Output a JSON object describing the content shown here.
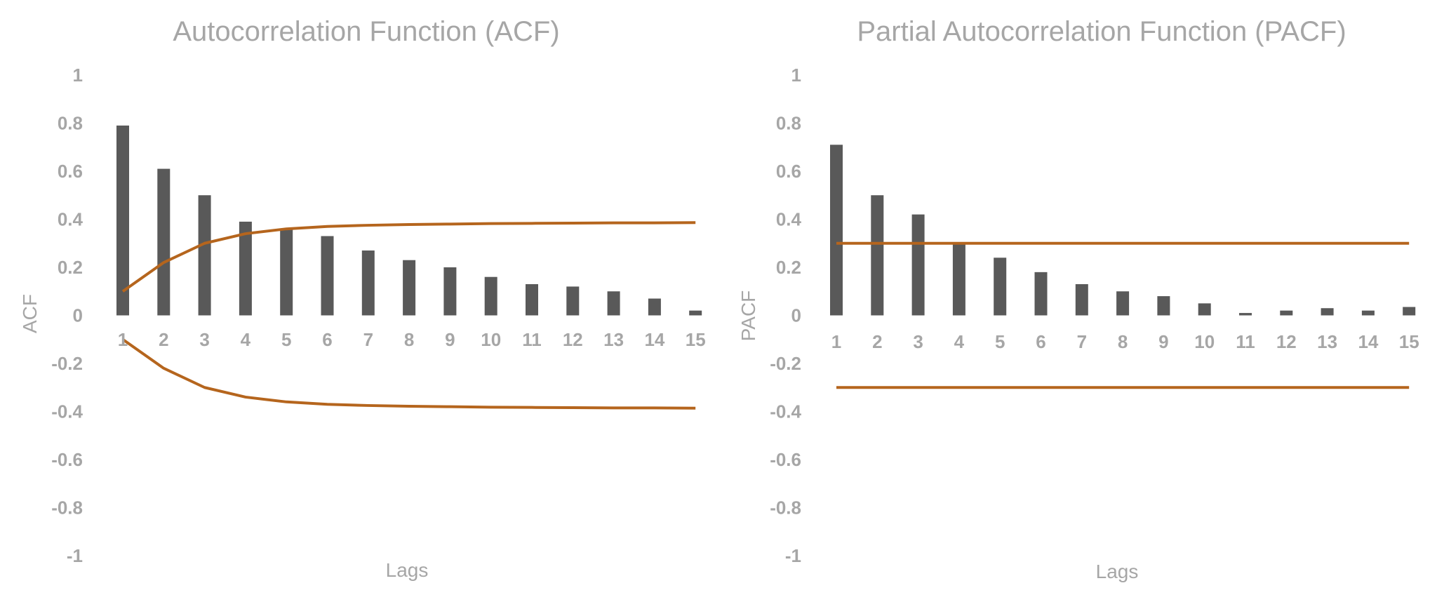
{
  "chart_data": [
    {
      "type": "bar",
      "title": "Autocorrelation Function (ACF)",
      "xlabel": "Lags",
      "ylabel": "ACF",
      "ylim": [
        -1,
        1
      ],
      "yticks": [
        1,
        0.8,
        0.6,
        0.4,
        0.2,
        0,
        -0.2,
        -0.4,
        -0.6,
        -0.8,
        -1
      ],
      "ytick_labels": [
        "1",
        "0.8",
        "0.6",
        "0.4",
        "0.2",
        "0",
        "-0.2",
        "-0.4",
        "-0.6",
        "-0.8",
        "-1"
      ],
      "categories": [
        "1",
        "2",
        "3",
        "4",
        "5",
        "6",
        "7",
        "8",
        "9",
        "10",
        "11",
        "12",
        "13",
        "14",
        "15"
      ],
      "values": [
        0.79,
        0.61,
        0.5,
        0.39,
        0.36,
        0.33,
        0.27,
        0.23,
        0.2,
        0.16,
        0.13,
        0.12,
        0.1,
        0.07,
        0.02
      ],
      "bounds": {
        "upper": [
          0.1,
          0.22,
          0.3,
          0.34,
          0.36,
          0.37,
          0.375,
          0.378,
          0.38,
          0.382,
          0.383,
          0.384,
          0.385,
          0.385,
          0.386
        ],
        "lower": [
          -0.1,
          -0.22,
          -0.3,
          -0.34,
          -0.36,
          -0.37,
          -0.375,
          -0.378,
          -0.38,
          -0.382,
          -0.383,
          -0.384,
          -0.385,
          -0.385,
          -0.386
        ]
      },
      "grid": false,
      "colors": {
        "bars": "#595959",
        "bounds": "#b5651d",
        "text": "#a6a6a6"
      }
    },
    {
      "type": "bar",
      "title": "Partial Autocorrelation Function (PACF)",
      "xlabel": "Lags",
      "ylabel": "PACF",
      "ylim": [
        -1,
        1
      ],
      "yticks": [
        1,
        0.8,
        0.6,
        0.4,
        0.2,
        0,
        -0.2,
        -0.4,
        -0.6,
        -0.8,
        -1
      ],
      "ytick_labels": [
        "1",
        "0.8",
        "0.6",
        "0.4",
        "0.2",
        "0",
        "-0.2",
        "-0.4",
        "-0.6",
        "-0.8",
        "-1"
      ],
      "categories": [
        "1",
        "2",
        "3",
        "4",
        "5",
        "6",
        "7",
        "8",
        "9",
        "10",
        "11",
        "12",
        "13",
        "14",
        "15"
      ],
      "values": [
        0.71,
        0.5,
        0.42,
        0.3,
        0.24,
        0.18,
        0.13,
        0.1,
        0.08,
        0.05,
        0.01,
        0.02,
        0.03,
        0.02,
        0.035
      ],
      "bounds": {
        "upper": [
          0.3,
          0.3,
          0.3,
          0.3,
          0.3,
          0.3,
          0.3,
          0.3,
          0.3,
          0.3,
          0.3,
          0.3,
          0.3,
          0.3,
          0.3
        ],
        "lower": [
          -0.3,
          -0.3,
          -0.3,
          -0.3,
          -0.3,
          -0.3,
          -0.3,
          -0.3,
          -0.3,
          -0.3,
          -0.3,
          -0.3,
          -0.3,
          -0.3,
          -0.3
        ]
      },
      "grid": false,
      "colors": {
        "bars": "#595959",
        "bounds": "#b5651d",
        "text": "#a6a6a6"
      }
    }
  ]
}
